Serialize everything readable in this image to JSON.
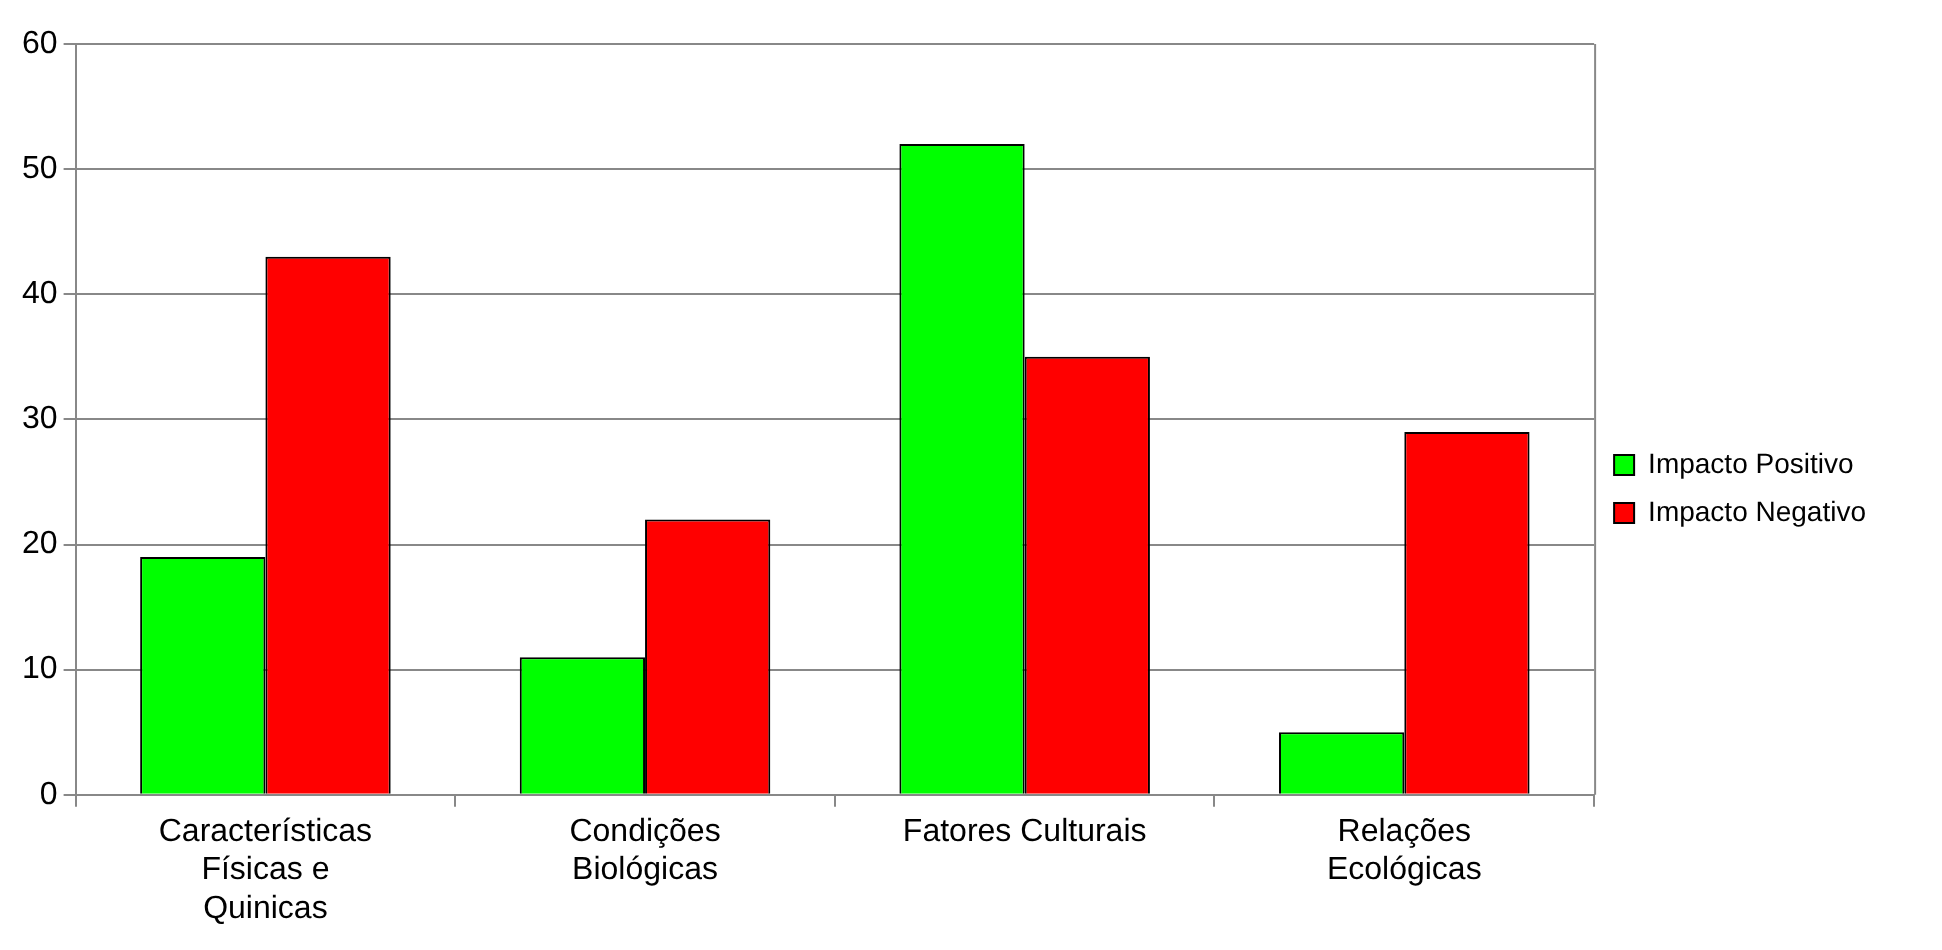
{
  "chart_data": {
    "type": "bar",
    "categories": [
      "Características Físicas e Quinicas",
      "Condições Biológicas",
      "Fatores Culturais",
      "Relações Ecológicas"
    ],
    "series": [
      {
        "name": "Impacto Positivo",
        "color": "#00ff00",
        "values": [
          19,
          11,
          52,
          5
        ]
      },
      {
        "name": "Impacto Negativo",
        "color": "#ff0000",
        "values": [
          43,
          22,
          35,
          29
        ]
      }
    ],
    "ylim": [
      0,
      60
    ],
    "yticks": [
      0,
      10,
      20,
      30,
      40,
      50,
      60
    ],
    "grid": "y",
    "legend": "right"
  }
}
